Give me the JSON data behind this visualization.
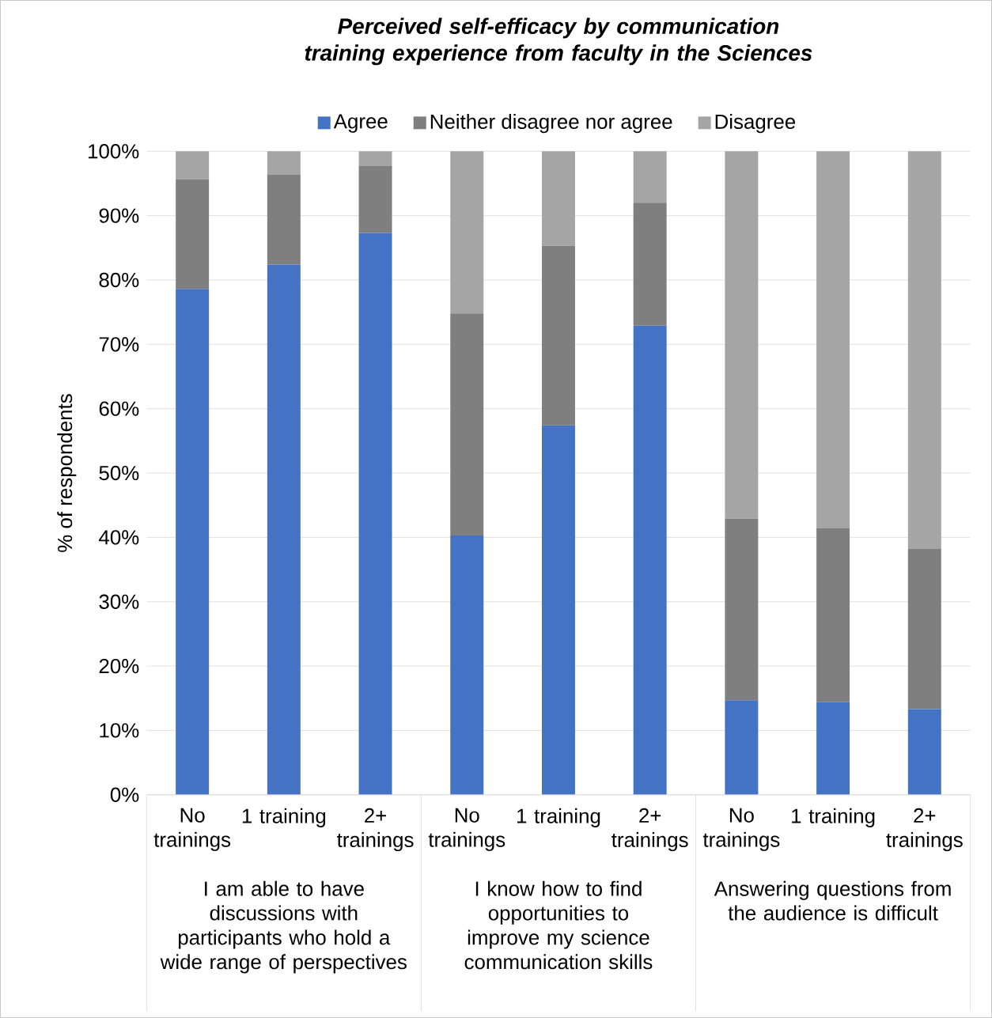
{
  "chart_data": {
    "type": "bar",
    "title": "Perceived self-efficacy by communication training experience from faculty in the Sciences",
    "ylabel": "% of respondents",
    "stacked": true,
    "legend": "top",
    "grid": "y",
    "categories": [
      "No trainings",
      "1 training",
      "2+ trainings",
      "No trainings",
      "1 training",
      "2+ trainings",
      "No trainings",
      "1 training",
      "2+ trainings"
    ],
    "annotations": [
      "I am able to have discussions with participants who hold a wide range of perspectives",
      "I know how to find opportunities to improve my science communication skills",
      "Answering questions from the audience is difficult"
    ],
    "ylim": [
      0,
      100
    ],
    "yticks": [
      {
        "value": 0,
        "label": "0%"
      },
      {
        "value": 10,
        "label": "10%"
      },
      {
        "value": 20,
        "label": "20%"
      },
      {
        "value": 30,
        "label": "30%"
      },
      {
        "value": 40,
        "label": "40%"
      },
      {
        "value": 50,
        "label": "50%"
      },
      {
        "value": 60,
        "label": "60%"
      },
      {
        "value": 70,
        "label": "70%"
      },
      {
        "value": 80,
        "label": "80%"
      },
      {
        "value": 90,
        "label": "90%"
      },
      {
        "value": 100,
        "label": "100%"
      }
    ],
    "series": [
      {
        "name": "Agree",
        "color": "#4472c4",
        "values": [
          78.6,
          82.4,
          87.3,
          40.3,
          57.4,
          72.9,
          14.7,
          14.4,
          13.3
        ]
      },
      {
        "name": "Neither disagree nor agree",
        "color": "#7f7f7f",
        "values": [
          17.0,
          14.0,
          10.4,
          34.5,
          27.9,
          19.1,
          28.2,
          27.0,
          24.9
        ]
      },
      {
        "name": "Disagree",
        "color": "#a5a5a5",
        "values": [
          4.4,
          3.6,
          2.3,
          25.2,
          14.7,
          8.0,
          57.1,
          58.6,
          61.8
        ]
      }
    ]
  }
}
